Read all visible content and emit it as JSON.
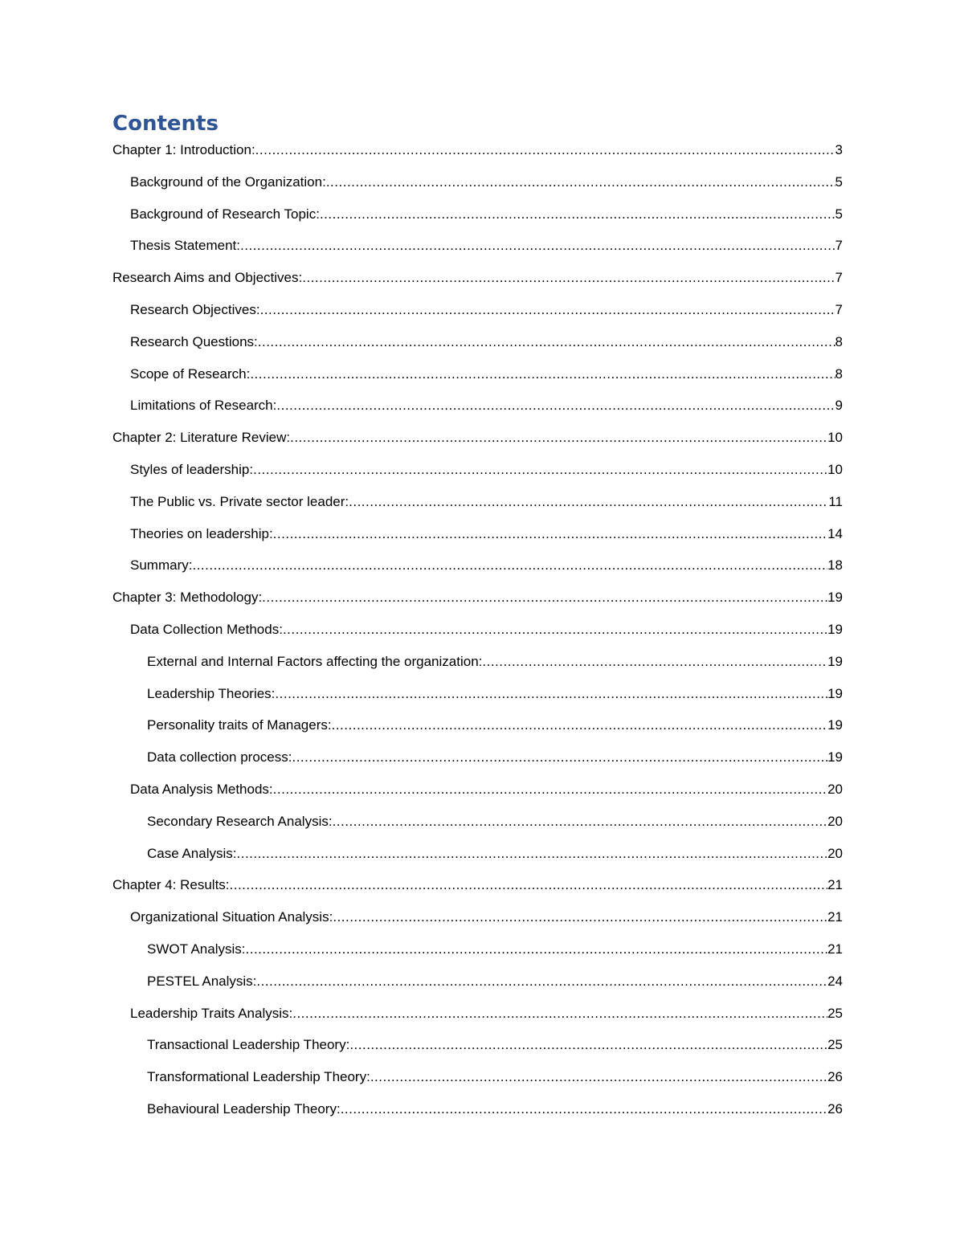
{
  "title": "Contents",
  "title_color": "#2F5597",
  "entries": [
    {
      "label": "Chapter 1: Introduction:",
      "page": "3",
      "level": 1
    },
    {
      "label": "Background of the Organization:",
      "page": "5",
      "level": 2
    },
    {
      "label": "Background of Research Topic:",
      "page": "5",
      "level": 2
    },
    {
      "label": "Thesis Statement:",
      "page": "7",
      "level": 2
    },
    {
      "label": "Research Aims and Objectives:",
      "page": "7",
      "level": 1
    },
    {
      "label": "Research Objectives:",
      "page": "7",
      "level": 2
    },
    {
      "label": "Research Questions:",
      "page": "8",
      "level": 2
    },
    {
      "label": "Scope of Research:",
      "page": "8",
      "level": 2
    },
    {
      "label": "Limitations of Research:",
      "page": "9",
      "level": 2
    },
    {
      "label": "Chapter 2: Literature Review:",
      "page": "10",
      "level": 1
    },
    {
      "label": "Styles of leadership:",
      "page": "10",
      "level": 2
    },
    {
      "label": "The Public vs. Private sector leader:",
      "page": "11",
      "level": 2
    },
    {
      "label": "Theories on leadership:",
      "page": "14",
      "level": 2
    },
    {
      "label": "Summary:",
      "page": "18",
      "level": 2
    },
    {
      "label": "Chapter 3: Methodology:",
      "page": "19",
      "level": 1
    },
    {
      "label": "Data Collection Methods:",
      "page": "19",
      "level": 2
    },
    {
      "label": "External and Internal Factors affecting the organization:",
      "page": "19",
      "level": 3
    },
    {
      "label": "Leadership Theories:",
      "page": "19",
      "level": 3
    },
    {
      "label": "Personality traits of Managers:",
      "page": "19",
      "level": 3
    },
    {
      "label": "Data collection process:",
      "page": "19",
      "level": 3
    },
    {
      "label": "Data Analysis Methods:",
      "page": "20",
      "level": 2
    },
    {
      "label": "Secondary Research Analysis:",
      "page": "20",
      "level": 3
    },
    {
      "label": "Case Analysis:",
      "page": "20",
      "level": 3
    },
    {
      "label": "Chapter 4: Results:",
      "page": "21",
      "level": 1
    },
    {
      "label": "Organizational Situation Analysis:",
      "page": "21",
      "level": 2
    },
    {
      "label": "SWOT Analysis:",
      "page": "21",
      "level": 3
    },
    {
      "label": "PESTEL Analysis:",
      "page": "24",
      "level": 3
    },
    {
      "label": "Leadership Traits Analysis:",
      "page": "25",
      "level": 2
    },
    {
      "label": "Transactional Leadership Theory:",
      "page": "25",
      "level": 3
    },
    {
      "label": "Transformational Leadership Theory:",
      "page": "26",
      "level": 3
    },
    {
      "label": "Behavioural Leadership Theory:",
      "page": "26",
      "level": 3
    }
  ]
}
